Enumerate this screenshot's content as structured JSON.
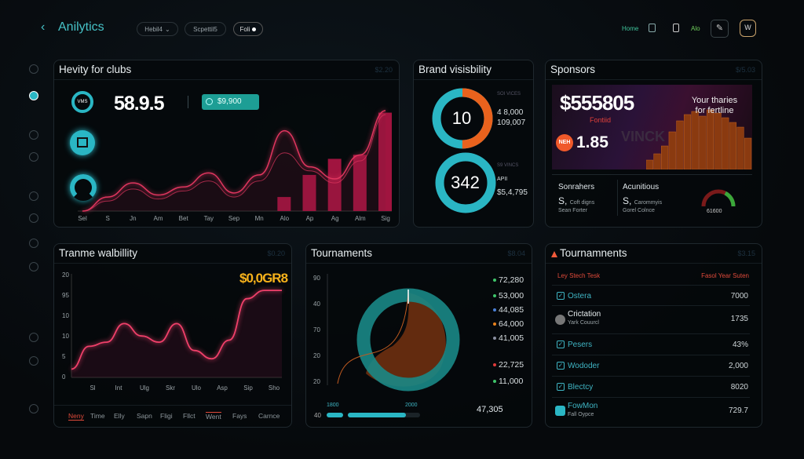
{
  "header": {
    "back_icon": "chevron-left-icon",
    "title": "Anilytics",
    "pills": [
      {
        "label": "Hebil4",
        "icon": "chevron-down-icon"
      },
      {
        "label": "Scpettil5"
      },
      {
        "label": "Foli",
        "icon": "dot-icon"
      }
    ],
    "nav_home": "Home",
    "nav_alo": "Alo",
    "accent": "#46c2c7"
  },
  "sidebar": {
    "icons": [
      "clock-icon",
      "speedometer-icon",
      "phone-icon",
      "target-icon",
      "image-icon",
      "chart-icon",
      "link-icon",
      "bag-icon",
      "gear-icon",
      "info-icon",
      "lock-icon"
    ]
  },
  "clubs": {
    "title": "Hevity for clubs",
    "code": "$2.20",
    "kpi": "58.9.5",
    "badge": "$9,900",
    "icon_labels": [
      "VMS"
    ],
    "x_labels": [
      "Sel",
      "S",
      "Jn",
      "Am",
      "Bet",
      "Tay",
      "Sep",
      "Mn",
      "Alo",
      "Ap",
      "Ag",
      "Alm",
      "Sig"
    ],
    "line_a": [
      0,
      14,
      28,
      16,
      24,
      38,
      18,
      36,
      80,
      44,
      32,
      56,
      100
    ],
    "line_b": [
      0,
      10,
      22,
      12,
      20,
      30,
      14,
      30,
      58,
      40,
      28,
      50,
      96
    ],
    "bars": [
      {
        "label": "Alo",
        "value": 14
      },
      {
        "label": "Ap",
        "value": 36
      },
      {
        "label": "Ag",
        "value": 52
      },
      {
        "label": "Alm",
        "value": 56
      },
      {
        "label": "Sig",
        "value": 98
      }
    ],
    "line_color": "#e0365f",
    "bar_color": "#a0143f"
  },
  "brand": {
    "title": "Brand visisbility",
    "donuts": [
      {
        "center": "10",
        "caption": "SOI VICES",
        "lines": [
          "4 8,000",
          "109,007"
        ],
        "fraction": 0.5,
        "colors": [
          "#e9621d",
          "#2ab6c4"
        ]
      },
      {
        "center": "342",
        "caption": "S9 VINCS",
        "lines": [
          "APII",
          "$5,4,795"
        ],
        "fraction": 1,
        "colors": [
          "#2ab6c4",
          "#2ab6c4"
        ]
      }
    ]
  },
  "sponsors": {
    "title": "Sponsors",
    "code": "$/5.03",
    "hero_value": "$555805",
    "hero_tag": "Fontiid",
    "hero_side": "Your tharies for fertline",
    "watermark": "VINCK",
    "new_badge": "NEH",
    "new_value": "1.85",
    "bars": [
      12,
      20,
      30,
      48,
      62,
      70,
      74,
      68,
      76,
      72,
      66,
      60,
      54,
      40
    ],
    "stats": [
      {
        "title": "Sonrahers",
        "value": "S,",
        "sub1": "Coft digns",
        "sub2": "Sean Forter"
      },
      {
        "title": "Acunitious",
        "value": "S,",
        "sub1": "Carommyis",
        "sub2": "Gorel Colnce"
      }
    ],
    "gauge_value": "61600",
    "gauge_fraction": 0.65
  },
  "walbility": {
    "title": "Tranme walbillity",
    "code": "$0.20",
    "amount": "$0,0GR8",
    "y_labels": [
      "20",
      "95",
      "10",
      "10",
      "5",
      "0"
    ],
    "x_labels": [
      "Sl",
      "Int",
      "Ulg",
      "Skr",
      "Ulo",
      "Asp",
      "Sip",
      "Sho"
    ],
    "line": [
      8,
      30,
      34,
      52,
      40,
      34,
      52,
      26,
      18,
      36,
      76,
      84,
      84
    ],
    "tabs": [
      "Neny",
      "Time",
      "Elly",
      "Sapn",
      "Fligi",
      "Fllct",
      "Went",
      "Fays",
      "Carnce"
    ],
    "active_tab": "Neny",
    "line_color": "#f0406a",
    "amount_color": "#f7b21b"
  },
  "tournaments": {
    "title": "Tournaments",
    "code": "$8.04",
    "y_labels": [
      "90",
      "40",
      "70",
      "20",
      "20"
    ],
    "legend": [
      {
        "value": "72,280",
        "color": "#3ec46a"
      },
      {
        "value": "53,000",
        "color": "#3ec46a"
      },
      {
        "value": "44,085",
        "color": "#4a7fd6"
      },
      {
        "value": "64,000",
        "color": "#e9821d"
      },
      {
        "value": "41,005",
        "color": "#8a8fa0"
      },
      {
        "value": "22,725",
        "color": "#e03a3a"
      },
      {
        "value": "11,000",
        "color": "#3ec46a"
      }
    ],
    "progress_labels": [
      "1800",
      "2000"
    ],
    "progress_axis": "40",
    "progress_fraction": 0.8,
    "total": "47,305",
    "ring_color": "#1a8886",
    "fill_color": "#7a3410"
  },
  "table": {
    "title": "Tournamnents",
    "code": "$3.15",
    "warn_icon": "warning-triangle-icon",
    "col_left": "Ley Stech Tesk",
    "col_right": "Fasol Year Suten",
    "rows": [
      {
        "name": "Ostera",
        "value": "7000",
        "icon": "checkbox-icon"
      },
      {
        "name": "Crictation",
        "sub": "Yark Couurcl",
        "value": "1735",
        "icon": "avatar-icon"
      },
      {
        "name": "Pesers",
        "value": "43%",
        "icon": "checkbox-icon"
      },
      {
        "name": "Wododer",
        "value": "2,000",
        "icon": "checkbox-icon"
      },
      {
        "name": "Blectcy",
        "value": "8020",
        "icon": "checkbox-icon"
      },
      {
        "name": "FowMon",
        "sub": "Fall Oypce",
        "value": "729.7",
        "icon": "document-icon"
      }
    ]
  }
}
